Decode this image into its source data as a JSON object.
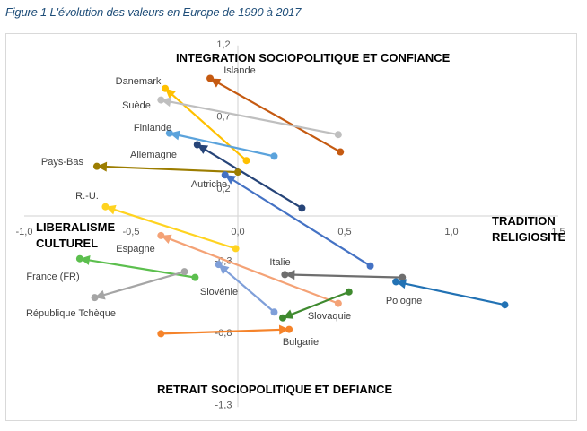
{
  "figure_title": "Figure 1 L'évolution des valeurs en Europe de 1990 à 2017",
  "chart_data": {
    "type": "scatter",
    "subtype": "arrow-scatter (1990 → 2017)",
    "title": "Figure 1 L'évolution des valeurs en Europe de 1990 à 2017",
    "xlabel_left": "LIBERALISME CULTUREL",
    "xlabel_right": "TRADITION RELIGIOSITE",
    "ylabel_top": "INTEGRATION SOCIOPOLITIQUE ET CONFIANCE",
    "ylabel_bottom": "RETRAIT SOCIOPOLITIQUE ET DEFIANCE",
    "xlim": [
      -1.0,
      1.5
    ],
    "ylim": [
      -1.3,
      1.2
    ],
    "x_ticks": [
      "-1,0",
      "-0,5",
      "0,0",
      "0,5",
      "1,0",
      "1,5"
    ],
    "x_tick_values": [
      -1.0,
      -0.5,
      0.0,
      0.5,
      1.0,
      1.5
    ],
    "y_ticks": [
      "1,2",
      "0,7",
      "0,2",
      "-0,3",
      "-0,8",
      "-1,3"
    ],
    "y_tick_values": [
      1.2,
      0.7,
      0.2,
      -0.3,
      -0.8,
      -1.3
    ],
    "grid": false,
    "legend": "none (direct labels)",
    "years": [
      "1990",
      "2017"
    ],
    "series": [
      {
        "name": "Islande",
        "color": "#c55a11",
        "start": [
          0.48,
          0.45
        ],
        "end": [
          -0.13,
          0.96
        ],
        "label_pos": "top-right"
      },
      {
        "name": "Danemark",
        "color": "#ffc000",
        "start": [
          0.04,
          0.39
        ],
        "end": [
          -0.34,
          0.89
        ],
        "label_pos": "top-left"
      },
      {
        "name": "Suède",
        "color": "#bfbfbf",
        "start": [
          0.47,
          0.57
        ],
        "end": [
          -0.36,
          0.81
        ],
        "label_pos": "left"
      },
      {
        "name": "Finlande",
        "color": "#5ba3dc",
        "start": [
          0.17,
          0.42
        ],
        "end": [
          -0.32,
          0.58
        ],
        "label_pos": "top-left"
      },
      {
        "name": "Allemagne",
        "color": "#264478",
        "start": [
          0.3,
          0.06
        ],
        "end": [
          -0.19,
          0.5
        ],
        "label_pos": "left"
      },
      {
        "name": "Pays-Bas",
        "color": "#9c7d00",
        "start": [
          0.0,
          0.31
        ],
        "end": [
          -0.66,
          0.35
        ],
        "label_pos": "left"
      },
      {
        "name": "Autriche",
        "color": "#4472c4",
        "start": [
          0.62,
          -0.34
        ],
        "end": [
          -0.06,
          0.29
        ],
        "label_pos": "bottom"
      },
      {
        "name": "R.-U.",
        "color": "#ffd320",
        "start": [
          -0.01,
          -0.22
        ],
        "end": [
          -0.62,
          0.07
        ],
        "label_pos": "top-left"
      },
      {
        "name": "Espagne",
        "color": "#f4a276",
        "start": [
          0.47,
          -0.6
        ],
        "end": [
          -0.36,
          -0.13
        ],
        "label_pos": "bottom-left"
      },
      {
        "name": "France (FR)",
        "color": "#5cbf4e",
        "start": [
          -0.2,
          -0.42
        ],
        "end": [
          -0.74,
          -0.29
        ],
        "label_pos": "bottom"
      },
      {
        "name": "République Tchèque",
        "color": "#a5a5a5",
        "start": [
          -0.25,
          -0.38
        ],
        "end": [
          -0.67,
          -0.56
        ],
        "label_pos": "bottom"
      },
      {
        "name": "Slovénie",
        "color": "#7f9fd9",
        "start": [
          0.17,
          -0.66
        ],
        "end": [
          -0.09,
          -0.33
        ],
        "label_pos": "bottom"
      },
      {
        "name": "Italie",
        "color": "#6e6e6e",
        "start": [
          0.77,
          -0.42
        ],
        "end": [
          0.22,
          -0.4
        ],
        "label_pos": "top"
      },
      {
        "name": "Pologne",
        "color": "#2272b4",
        "start": [
          1.25,
          -0.61
        ],
        "end": [
          0.74,
          -0.45
        ],
        "label_pos": "bottom"
      },
      {
        "name": "Slovaquie",
        "color": "#3f8a2f",
        "start": [
          0.52,
          -0.52
        ],
        "end": [
          0.21,
          -0.7
        ],
        "label_pos": "right"
      },
      {
        "name": "Bulgarie",
        "color": "#f5832a",
        "start": [
          -0.36,
          -0.81
        ],
        "end": [
          0.24,
          -0.78
        ],
        "label_pos": "bottom"
      }
    ]
  }
}
